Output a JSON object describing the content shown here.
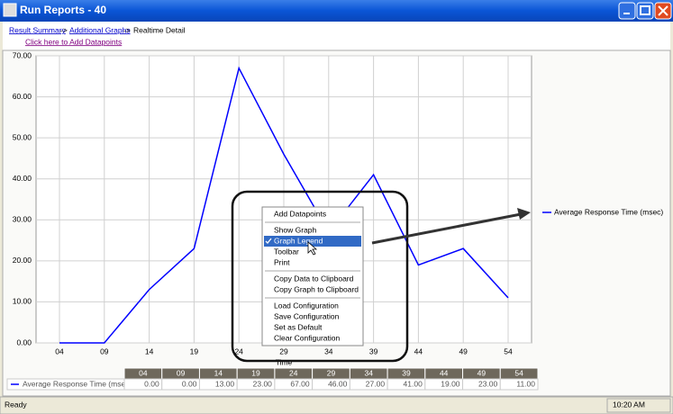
{
  "window": {
    "title": "Run Reports - 40"
  },
  "breadcrumb": {
    "links": [
      "Result Summary",
      "Additional Graphs"
    ],
    "separator": "->",
    "current": "Realtime Detail"
  },
  "add_link": "Click here to Add Datapoints",
  "chart_data": {
    "type": "line",
    "xlabel": "Time",
    "categories": [
      "04",
      "09",
      "14",
      "19",
      "24",
      "29",
      "34",
      "39",
      "44",
      "49",
      "54"
    ],
    "series": [
      {
        "name": "Average Response Time (msec)",
        "color": "#0000ff",
        "values": [
          0,
          0,
          13,
          23,
          67,
          46,
          27,
          41,
          19,
          23,
          11
        ],
        "value_labels": [
          "0.00",
          "0.00",
          "13.00",
          "23.00",
          "67.00",
          "46.00",
          "27.00",
          "41.00",
          "19.00",
          "23.00",
          "11.00"
        ]
      }
    ],
    "ylim": [
      0,
      70
    ],
    "yticks": [
      {
        "value": 0,
        "label": "0.00"
      },
      {
        "value": 10,
        "label": "10.00"
      },
      {
        "value": 20,
        "label": "20.00"
      },
      {
        "value": 30,
        "label": "30.00"
      },
      {
        "value": 40,
        "label": "40.00"
      },
      {
        "value": 50,
        "label": "50.00"
      },
      {
        "value": 60,
        "label": "60.00"
      },
      {
        "value": 70,
        "label": "70.00"
      }
    ],
    "grid": true,
    "legend": "right"
  },
  "context_menu": {
    "groups": [
      [
        {
          "label": "Add Datapoints"
        }
      ],
      [
        {
          "label": "Show Graph"
        },
        {
          "label": "Graph Legend",
          "checked": true,
          "highlighted": true
        },
        {
          "label": "Toolbar"
        },
        {
          "label": "Print"
        }
      ],
      [
        {
          "label": "Copy Data to Clipboard"
        },
        {
          "label": "Copy Graph to Clipboard"
        }
      ],
      [
        {
          "label": "Load Configuration"
        },
        {
          "label": "Save Configuration"
        },
        {
          "label": "Set as Default"
        },
        {
          "label": "Clear Configuration"
        }
      ]
    ]
  },
  "status_bar": {
    "left": "Ready",
    "clock": "10:20 AM"
  }
}
